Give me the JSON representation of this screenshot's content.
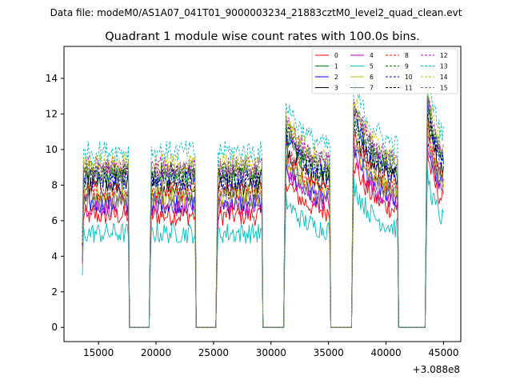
{
  "chart_data": {
    "type": "line",
    "suptitle": "Data file: modeM0/AS1A07_041T01_9000003234_21883cztM0_level2_quad_clean.evt",
    "title": "Quadrant 1 module wise count rates with 100.0s bins.",
    "xlabel": "",
    "ylabel": "",
    "x_offset_label": "+3.088e8",
    "xlim": [
      12000,
      46500
    ],
    "ylim": [
      -0.8,
      15.8
    ],
    "xticks": [
      15000,
      20000,
      25000,
      30000,
      35000,
      40000,
      45000
    ],
    "xtick_labels": [
      "15000",
      "20000",
      "25000",
      "30000",
      "35000",
      "40000",
      "45000"
    ],
    "yticks": [
      0,
      2,
      4,
      6,
      8,
      10,
      12,
      14
    ],
    "ytick_labels": [
      "0",
      "2",
      "4",
      "6",
      "8",
      "10",
      "12",
      "14"
    ],
    "bin_seconds": 100,
    "gap_value": 0,
    "segments": [
      {
        "start": 13600,
        "end": 17600,
        "shape": "flat",
        "pre_gap": [
          17600,
          19500
        ]
      },
      {
        "start": 19500,
        "end": 23400,
        "shape": "flat",
        "pre_gap": [
          23400,
          25300
        ]
      },
      {
        "start": 25300,
        "end": 29200,
        "shape": "flat",
        "pre_gap": [
          29200,
          31200
        ]
      },
      {
        "start": 31200,
        "end": 35100,
        "shape": "decay",
        "pre_gap": [
          35100,
          37100
        ]
      },
      {
        "start": 37100,
        "end": 41000,
        "shape": "decay",
        "pre_gap": [
          41000,
          43500
        ]
      },
      {
        "start": 43500,
        "end": 45000,
        "shape": "decay",
        "pre_gap": null
      }
    ],
    "legend_location": "top-right",
    "legend_columns": 4,
    "series": [
      {
        "name": "0",
        "color": "#ff0000",
        "dash": "solid",
        "base_level": 6.3
      },
      {
        "name": "1",
        "color": "#008000",
        "dash": "solid",
        "base_level": 8.4
      },
      {
        "name": "2",
        "color": "#0000ff",
        "dash": "solid",
        "base_level": 7.0
      },
      {
        "name": "3",
        "color": "#000000",
        "dash": "solid",
        "base_level": 7.9
      },
      {
        "name": "4",
        "color": "#bf00bf",
        "dash": "solid",
        "base_level": 6.8
      },
      {
        "name": "5",
        "color": "#00bfbf",
        "dash": "solid",
        "base_level": 5.3
      },
      {
        "name": "6",
        "color": "#bfbf00",
        "dash": "solid",
        "base_level": 7.4
      },
      {
        "name": "7",
        "color": "#808080",
        "dash": "solid",
        "base_level": 7.2
      },
      {
        "name": "8",
        "color": "#ff0000",
        "dash": "dashed",
        "base_level": 7.7
      },
      {
        "name": "9",
        "color": "#008000",
        "dash": "dashed",
        "base_level": 8.8
      },
      {
        "name": "10",
        "color": "#0000ff",
        "dash": "dashed",
        "base_level": 8.3
      },
      {
        "name": "11",
        "color": "#000000",
        "dash": "dashed",
        "base_level": 8.6
      },
      {
        "name": "12",
        "color": "#bf00bf",
        "dash": "dashed",
        "base_level": 9.0
      },
      {
        "name": "13",
        "color": "#00bfbf",
        "dash": "dashed",
        "base_level": 9.9
      },
      {
        "name": "14",
        "color": "#bfbf00",
        "dash": "dashed",
        "base_level": 9.2
      },
      {
        "name": "15",
        "color": "#808080",
        "dash": "dashed",
        "base_level": 8.9
      }
    ]
  }
}
